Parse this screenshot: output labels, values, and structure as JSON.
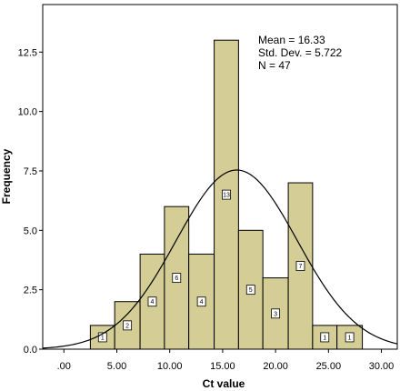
{
  "chart_data": {
    "type": "bar",
    "subtype": "histogram",
    "xlabel": "Ct value",
    "ylabel": "Frequency",
    "xlim": [
      -2.0,
      31.5
    ],
    "ylim": [
      0,
      14.5
    ],
    "xticks": [
      0,
      5,
      10,
      15,
      20,
      25,
      30
    ],
    "xtick_labels": [
      ".00",
      "5.00",
      "10.00",
      "15.00",
      "20.00",
      "25.00",
      "30.00"
    ],
    "yticks": [
      0,
      2.5,
      5,
      7.5,
      10,
      12.5
    ],
    "ytick_labels": [
      "0.0",
      "2.5",
      "5.0",
      "7.5",
      "10.0",
      "12.5"
    ],
    "bins": [
      {
        "start": 2.5,
        "end": 4.8,
        "count": 1
      },
      {
        "start": 4.8,
        "end": 7.2,
        "count": 2
      },
      {
        "start": 7.2,
        "end": 9.5,
        "count": 4
      },
      {
        "start": 9.5,
        "end": 11.8,
        "count": 6
      },
      {
        "start": 11.8,
        "end": 14.2,
        "count": 4
      },
      {
        "start": 14.2,
        "end": 16.5,
        "count": 13
      },
      {
        "start": 16.5,
        "end": 18.8,
        "count": 5
      },
      {
        "start": 18.8,
        "end": 21.2,
        "count": 3
      },
      {
        "start": 21.2,
        "end": 23.5,
        "count": 7
      },
      {
        "start": 23.5,
        "end": 25.8,
        "count": 1
      },
      {
        "start": 25.8,
        "end": 28.2,
        "count": 1
      }
    ],
    "bin_labels": [
      "1",
      "2",
      "4",
      "6",
      "4",
      "13",
      "5",
      "3",
      "7",
      "1",
      "1"
    ],
    "stats": {
      "mean_label": "Mean = 16.33",
      "sd_label": "Std. Dev. = 5.722",
      "n_label": "N = 47",
      "mean": 16.33,
      "sd": 5.722,
      "n": 47
    },
    "grid": false,
    "legend": "none",
    "colors": {
      "bar_fill": "#d4cd96",
      "bar_stroke": "#000000",
      "curve": "#000000",
      "background": "#ffffff"
    }
  }
}
